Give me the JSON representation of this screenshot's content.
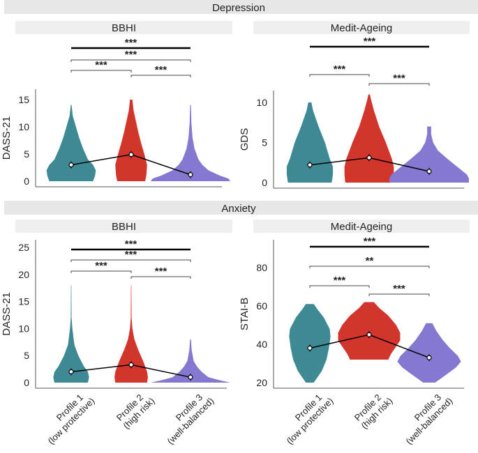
{
  "colors": {
    "profile1": "#3e8a94",
    "profile2": "#d2352c",
    "profile3": "#8478d0",
    "header": "#e6e6e6",
    "subheader": "#efefef"
  },
  "chart_data": [
    {
      "type": "violin",
      "section": "Depression",
      "title": "BBHI",
      "ylabel": "DASS-21",
      "ylim": [
        0,
        15
      ],
      "yticks": [
        0,
        5,
        10,
        15
      ],
      "categories": [
        "Profile 1\n(low protective)",
        "Profile 2\n(high risk)",
        "Profile 3\n(well-balanced)"
      ],
      "means": [
        3.0,
        4.9,
        1.2
      ],
      "ranges": [
        [
          0,
          14
        ],
        [
          0,
          15
        ],
        [
          0,
          14
        ]
      ],
      "shapes": [
        [
          [
            0,
            0.55
          ],
          [
            1,
            0.6
          ],
          [
            2,
            0.62
          ],
          [
            3,
            0.55
          ],
          [
            4,
            0.42
          ],
          [
            6,
            0.3
          ],
          [
            8,
            0.2
          ],
          [
            10,
            0.12
          ],
          [
            12,
            0.04
          ],
          [
            14,
            0.01
          ]
        ],
        [
          [
            0,
            0.35
          ],
          [
            1,
            0.38
          ],
          [
            3,
            0.4
          ],
          [
            5,
            0.33
          ],
          [
            7,
            0.25
          ],
          [
            9,
            0.18
          ],
          [
            11,
            0.12
          ],
          [
            13,
            0.06
          ],
          [
            15,
            0.03
          ]
        ],
        [
          [
            0,
            1.0
          ],
          [
            0.5,
            0.95
          ],
          [
            1,
            0.75
          ],
          [
            2,
            0.45
          ],
          [
            3,
            0.3
          ],
          [
            4,
            0.2
          ],
          [
            6,
            0.1
          ],
          [
            8,
            0.05
          ],
          [
            11,
            0.02
          ],
          [
            14,
            0.01
          ]
        ]
      ],
      "comparisons": [
        {
          "pair": [
            1,
            3
          ],
          "label": "***",
          "bold": true
        },
        {
          "pair": [
            1,
            3
          ],
          "label": "***",
          "bold": false
        },
        {
          "pair": [
            1,
            2
          ],
          "label": "***",
          "bold": false
        },
        {
          "pair": [
            2,
            3
          ],
          "label": "***",
          "bold": false
        }
      ]
    },
    {
      "type": "violin",
      "section": "Depression",
      "title": "Medit-Ageing",
      "ylabel": "GDS",
      "ylim": [
        0,
        11
      ],
      "yticks": [
        0,
        5,
        10
      ],
      "categories": [
        "Profile 1\n(low protective)",
        "Profile 2\n(high risk)",
        "Profile 3\n(well-balanced)"
      ],
      "means": [
        2.2,
        3.1,
        1.4
      ],
      "ranges": [
        [
          0,
          10
        ],
        [
          0,
          11
        ],
        [
          0,
          7
        ]
      ],
      "shapes": [
        [
          [
            0,
            0.55
          ],
          [
            1,
            0.58
          ],
          [
            2,
            0.58
          ],
          [
            3,
            0.5
          ],
          [
            5,
            0.38
          ],
          [
            7,
            0.22
          ],
          [
            9,
            0.08
          ],
          [
            10,
            0.04
          ]
        ],
        [
          [
            0,
            0.6
          ],
          [
            1,
            0.62
          ],
          [
            2,
            0.62
          ],
          [
            3,
            0.57
          ],
          [
            5,
            0.42
          ],
          [
            7,
            0.25
          ],
          [
            9,
            0.12
          ],
          [
            10.5,
            0.04
          ],
          [
            11,
            0.02
          ]
        ],
        [
          [
            0,
            1.0
          ],
          [
            0.5,
            1.0
          ],
          [
            1,
            0.95
          ],
          [
            2,
            0.7
          ],
          [
            3,
            0.45
          ],
          [
            4,
            0.22
          ],
          [
            5,
            0.1
          ],
          [
            6,
            0.05
          ],
          [
            7,
            0.05
          ]
        ]
      ],
      "comparisons": [
        {
          "pair": [
            1,
            3
          ],
          "label": "***",
          "bold": true
        },
        {
          "pair": [
            1,
            2
          ],
          "label": "***",
          "bold": false
        },
        {
          "pair": [
            2,
            3
          ],
          "label": "***",
          "bold": false
        }
      ]
    },
    {
      "type": "violin",
      "section": "Anxiety",
      "title": "BBHI",
      "ylabel": "DASS-21",
      "ylim": [
        0,
        25
      ],
      "yticks": [
        0,
        5,
        10,
        15,
        20,
        25
      ],
      "categories": [
        "Profile 1\n(low protective)",
        "Profile 2\n(high risk)",
        "Profile 3\n(well-balanced)"
      ],
      "means": [
        2.0,
        3.3,
        1.0
      ],
      "ranges": [
        [
          0,
          18
        ],
        [
          0,
          18
        ],
        [
          0,
          8
        ]
      ],
      "shapes": [
        [
          [
            0,
            0.42
          ],
          [
            1,
            0.45
          ],
          [
            2,
            0.42
          ],
          [
            3,
            0.32
          ],
          [
            5,
            0.18
          ],
          [
            7,
            0.08
          ],
          [
            10,
            0.03
          ],
          [
            12,
            0.01
          ],
          [
            18,
            0.005
          ]
        ],
        [
          [
            0,
            0.4
          ],
          [
            1,
            0.42
          ],
          [
            2,
            0.4
          ],
          [
            4,
            0.3
          ],
          [
            6,
            0.18
          ],
          [
            8,
            0.08
          ],
          [
            10,
            0.03
          ],
          [
            12,
            0.01
          ],
          [
            18,
            0.005
          ]
        ],
        [
          [
            0,
            1.0
          ],
          [
            0.5,
            0.7
          ],
          [
            1,
            0.45
          ],
          [
            2,
            0.28
          ],
          [
            3,
            0.16
          ],
          [
            4,
            0.08
          ],
          [
            6,
            0.03
          ],
          [
            8,
            0.01
          ]
        ]
      ],
      "comparisons": [
        {
          "pair": [
            1,
            3
          ],
          "label": "***",
          "bold": true
        },
        {
          "pair": [
            1,
            3
          ],
          "label": "***",
          "bold": false
        },
        {
          "pair": [
            1,
            2
          ],
          "label": "***",
          "bold": false
        },
        {
          "pair": [
            2,
            3
          ],
          "label": "***",
          "bold": false
        }
      ]
    },
    {
      "type": "violin",
      "section": "Anxiety",
      "title": "Medit-Ageing",
      "ylabel": "STAI-B",
      "ylim": [
        20,
        90
      ],
      "yticks": [
        20,
        40,
        60,
        80
      ],
      "categories": [
        "Profile 1\n(low protective)",
        "Profile 2\n(high risk)",
        "Profile 3\n(well-balanced)"
      ],
      "means": [
        38,
        45,
        33
      ],
      "ranges": [
        [
          20,
          61
        ],
        [
          32,
          62
        ],
        [
          20,
          51
        ]
      ],
      "shapes": [
        [
          [
            20,
            0.1
          ],
          [
            26,
            0.3
          ],
          [
            32,
            0.42
          ],
          [
            38,
            0.48
          ],
          [
            44,
            0.52
          ],
          [
            48,
            0.5
          ],
          [
            54,
            0.35
          ],
          [
            58,
            0.2
          ],
          [
            61,
            0.1
          ]
        ],
        [
          [
            32,
            0.48
          ],
          [
            35,
            0.55
          ],
          [
            38,
            0.65
          ],
          [
            42,
            0.78
          ],
          [
            46,
            0.78
          ],
          [
            50,
            0.68
          ],
          [
            55,
            0.48
          ],
          [
            59,
            0.25
          ],
          [
            62,
            0.12
          ]
        ],
        [
          [
            20,
            0.15
          ],
          [
            24,
            0.42
          ],
          [
            28,
            0.68
          ],
          [
            31,
            0.8
          ],
          [
            34,
            0.72
          ],
          [
            38,
            0.52
          ],
          [
            42,
            0.35
          ],
          [
            47,
            0.18
          ],
          [
            51,
            0.08
          ]
        ]
      ],
      "comparisons": [
        {
          "pair": [
            1,
            3
          ],
          "label": "***",
          "bold": true
        },
        {
          "pair": [
            1,
            3
          ],
          "label": "**",
          "bold": false
        },
        {
          "pair": [
            1,
            2
          ],
          "label": "***",
          "bold": false
        },
        {
          "pair": [
            2,
            3
          ],
          "label": "***",
          "bold": false
        }
      ]
    }
  ],
  "sections": [
    "Depression",
    "Anxiety"
  ]
}
